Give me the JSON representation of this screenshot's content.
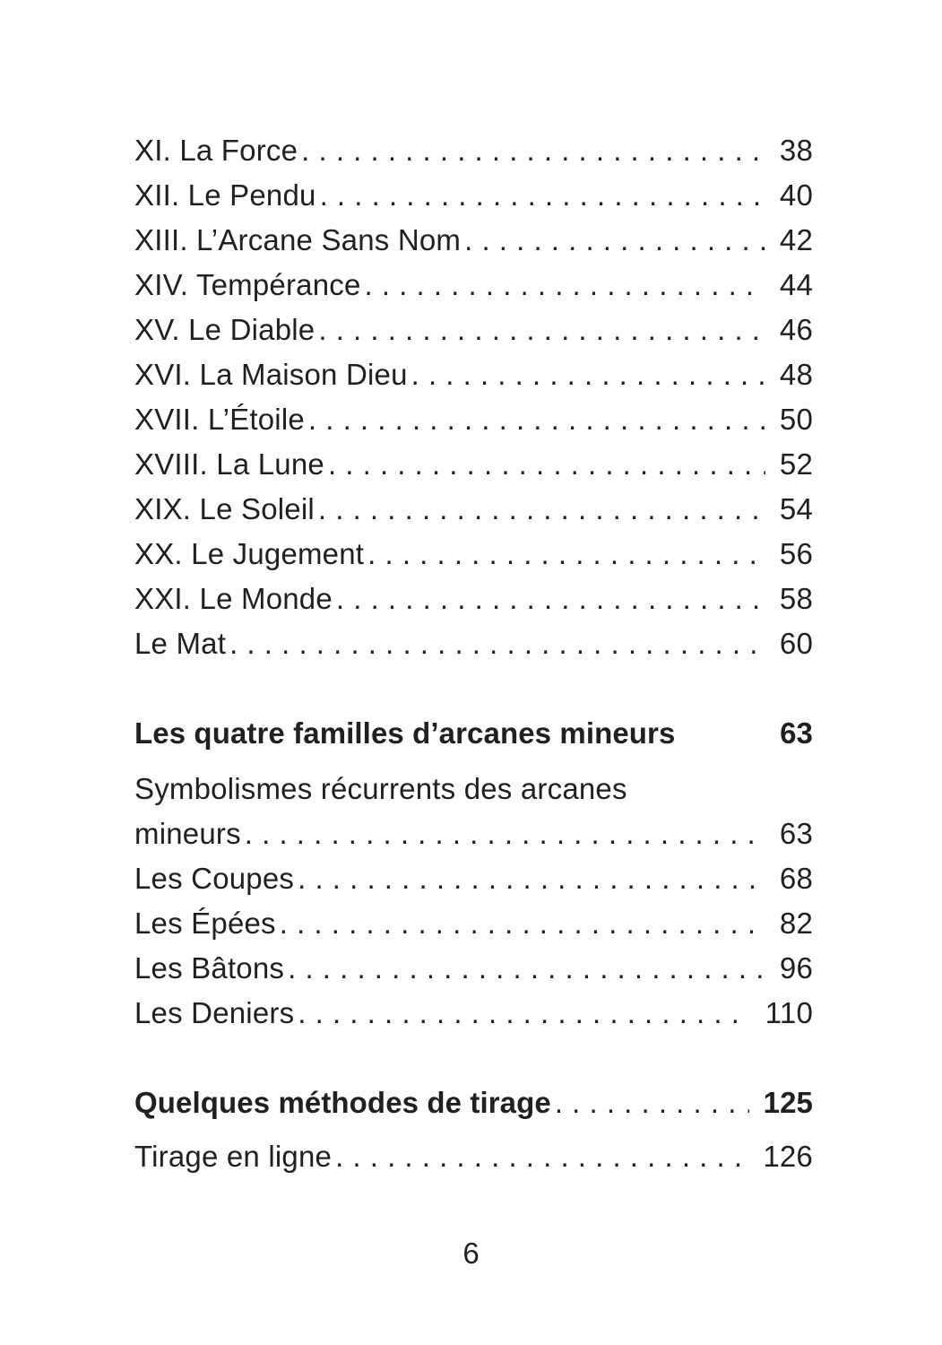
{
  "document": {
    "kind": "table-of-contents",
    "language": "fr",
    "text_color": "#231f20",
    "background_color": "#ffffff",
    "folio": "6",
    "toc": {
      "rows": [
        {
          "text": "XI. La Force",
          "page": "38"
        },
        {
          "text": "XII. Le Pendu",
          "page": "40"
        },
        {
          "text": "XIII. L’Arcane Sans Nom",
          "page": "42"
        },
        {
          "text": "XIV. Tempérance",
          "page": "44"
        },
        {
          "text": "XV. Le Diable",
          "page": "46"
        },
        {
          "text": "XVI. La Maison Dieu",
          "page": "48"
        },
        {
          "text": "XVII. L’Étoile",
          "page": "50"
        },
        {
          "text": "XVIII. La Lune",
          "page": "52"
        },
        {
          "text": "XIX. Le Soleil",
          "page": "54"
        },
        {
          "text": "XX. Le Jugement",
          "page": "56"
        },
        {
          "text": "XXI. Le Monde",
          "page": "58"
        },
        {
          "text": "Le Mat",
          "page": "60"
        },
        {
          "text": "Les quatre familles d’arcanes mineurs",
          "page": "63",
          "style": "bold-heading",
          "dots": false
        },
        {
          "text": "Symbolismes récurrents des arcanes",
          "page": "",
          "dots": false
        },
        {
          "text": "mineurs",
          "page": "63"
        },
        {
          "text": "Les Coupes",
          "page": "68"
        },
        {
          "text": "Les Épées",
          "page": "82"
        },
        {
          "text": "Les Bâtons",
          "page": "96"
        },
        {
          "text": "Les Deniers",
          "page": "110"
        },
        {
          "text": "Quelques méthodes de tirage",
          "page": "125",
          "style": "bold-heading",
          "dots": true
        },
        {
          "text": "Tirage en ligne",
          "page": "126"
        }
      ]
    }
  }
}
